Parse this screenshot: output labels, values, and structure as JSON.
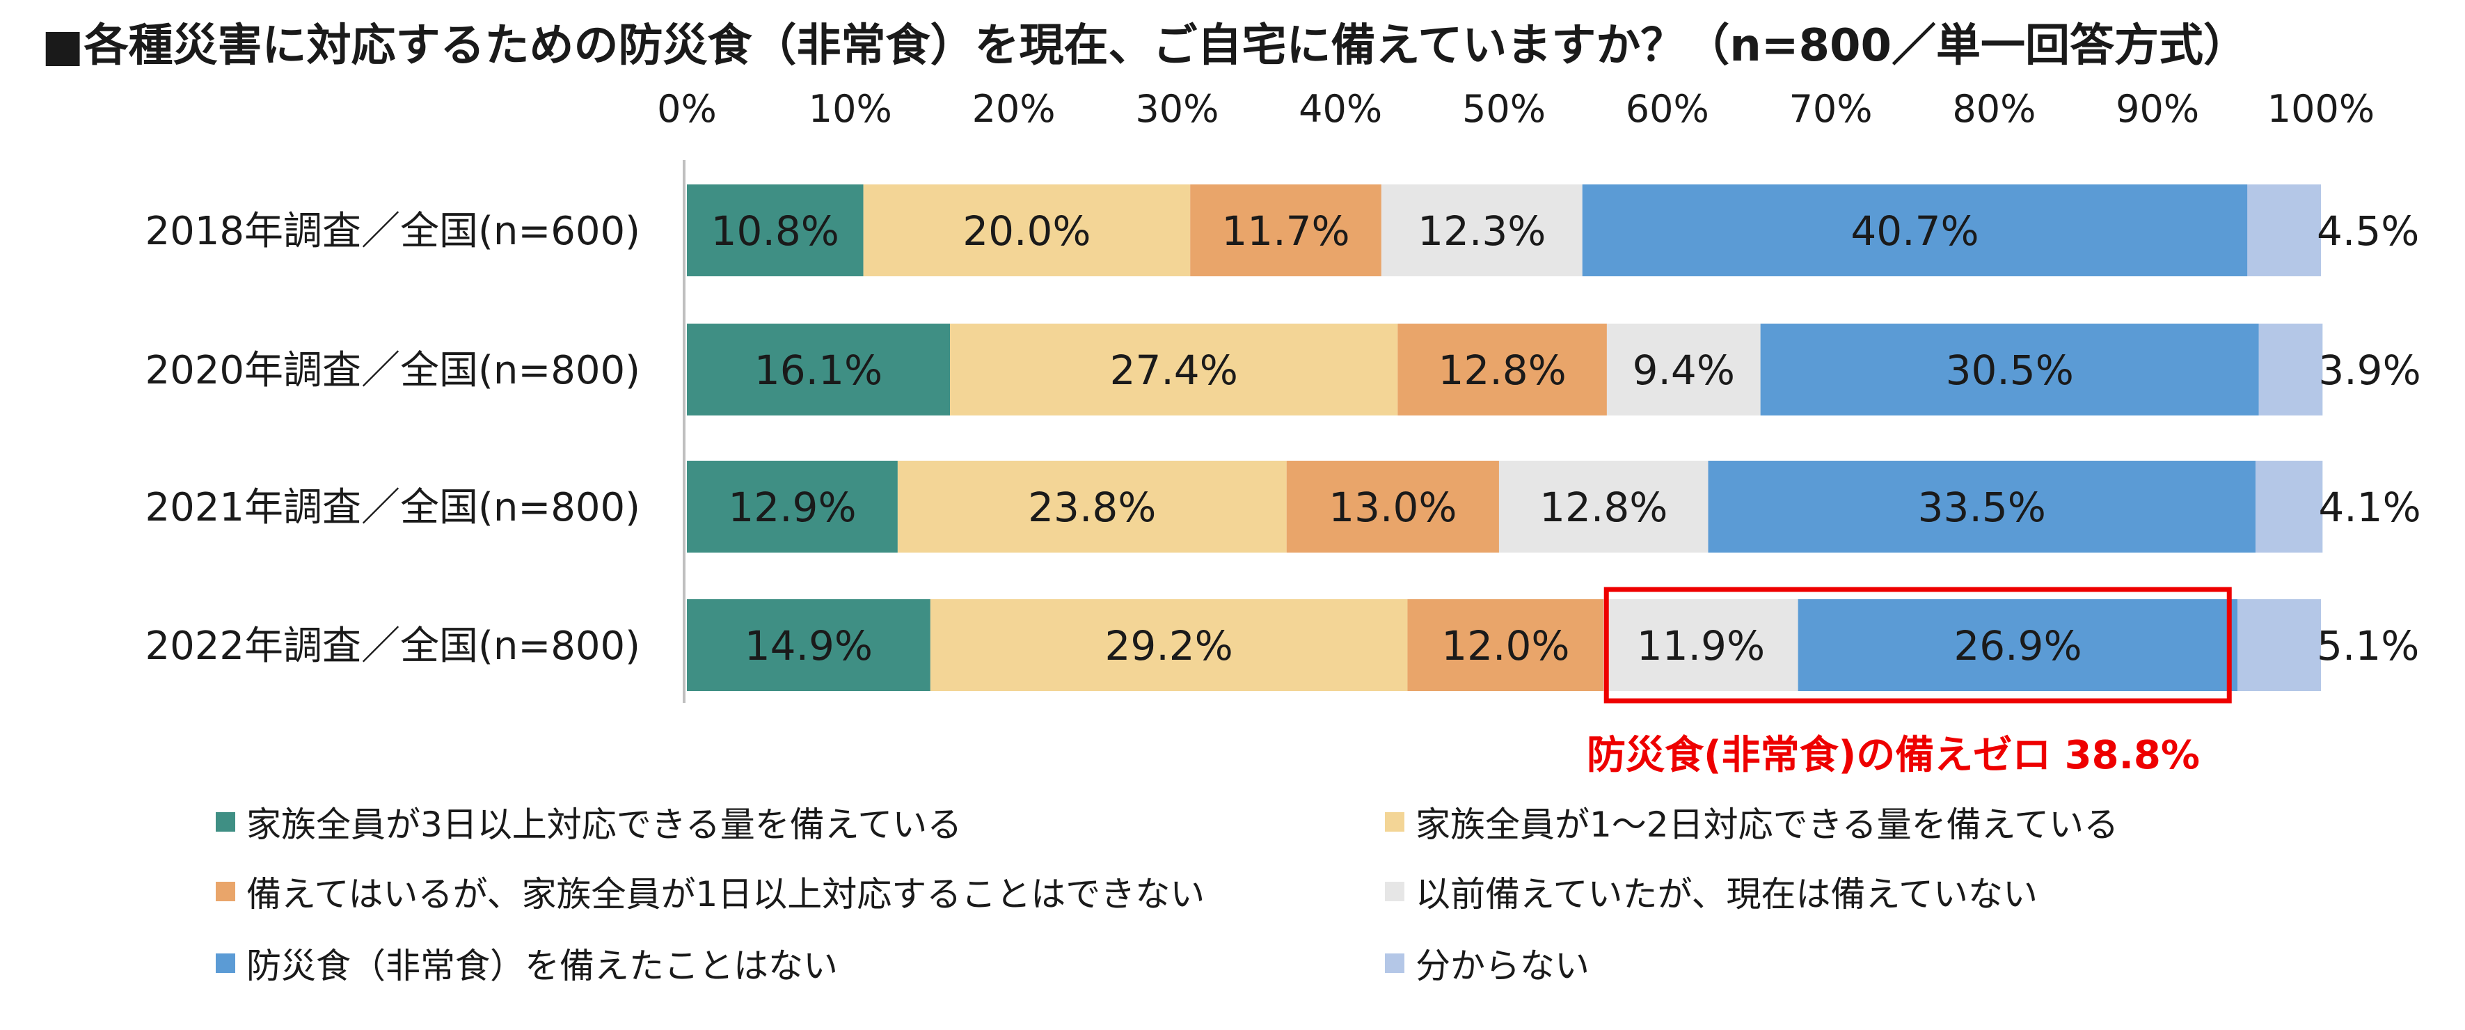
{
  "title": "■各種災害に対応するための防災食（非常食）を現在、ご自宅に備えていますか？（n=800／単一回答方式）",
  "chart_data": {
    "type": "bar",
    "orientation": "horizontal",
    "stacked": true,
    "xlim": [
      0,
      100
    ],
    "x_ticks": [
      "0%",
      "10%",
      "20%",
      "30%",
      "40%",
      "50%",
      "60%",
      "70%",
      "80%",
      "90%",
      "100%"
    ],
    "categories": [
      "2018年調査／全国(n=600)",
      "2020年調査／全国(n=800)",
      "2021年調査／全国(n=800)",
      "2022年調査／全国(n=800)"
    ],
    "series": [
      {
        "name": "家族全員が3日以上対応できる量を備えている",
        "color": "#3f8f84",
        "values": [
          10.8,
          16.1,
          12.9,
          14.9
        ],
        "labels": [
          "10.8%",
          "16.1%",
          "12.9%",
          "14.9%"
        ]
      },
      {
        "name": "家族全員が1～2日対応できる量を備えている",
        "color": "#f3d596",
        "values": [
          20.0,
          27.4,
          23.8,
          29.2
        ],
        "labels": [
          "20.0%",
          "27.4%",
          "23.8%",
          "29.2%"
        ]
      },
      {
        "name": "備えてはいるが、家族全員が1日以上対応することはできない",
        "color": "#e9a56a",
        "values": [
          11.7,
          12.8,
          13.0,
          12.0
        ],
        "labels": [
          "11.7%",
          "12.8%",
          "13.0%",
          "12.0%"
        ]
      },
      {
        "name": "以前備えていたが、現在は備えていない",
        "color": "#e6e6e6",
        "values": [
          12.3,
          9.4,
          12.8,
          11.9
        ],
        "labels": [
          "12.3%",
          "9.4%",
          "12.8%",
          "11.9%"
        ]
      },
      {
        "name": "防災食（非常食）を備えたことはない",
        "color": "#5b9bd5",
        "values": [
          40.7,
          30.5,
          33.5,
          26.9
        ],
        "labels": [
          "40.7%",
          "30.5%",
          "33.5%",
          "26.9%"
        ]
      },
      {
        "name": "分からない",
        "color": "#b4c7e7",
        "values": [
          4.5,
          3.9,
          4.1,
          5.1
        ],
        "labels": [
          "4.5%",
          "3.9%",
          "4.1%",
          "5.1%"
        ]
      }
    ],
    "annotation": {
      "text": "防災食(非常食)の備えゼロ 38.8%",
      "color": "#ee0000"
    },
    "grid": false,
    "legend_position": "bottom"
  }
}
